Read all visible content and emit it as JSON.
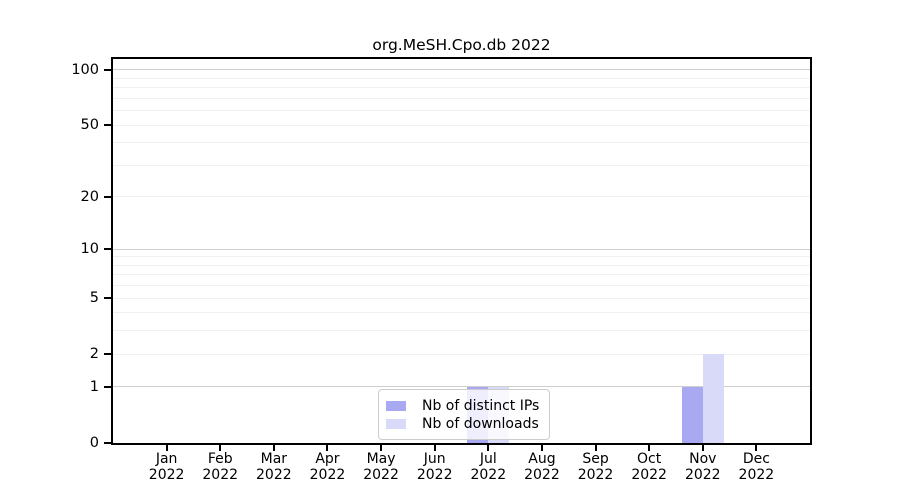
{
  "title": "org.MeSH.Cpo.db 2022",
  "chart_data": {
    "type": "bar",
    "title": "org.MeSH.Cpo.db 2022",
    "categories": [
      "Jan",
      "Feb",
      "Mar",
      "Apr",
      "May",
      "Jun",
      "Jul",
      "Aug",
      "Sep",
      "Oct",
      "Nov",
      "Dec"
    ],
    "year_label": "2022",
    "series": [
      {
        "name": "Nb of distinct IPs",
        "color": "#a9a9f1",
        "values": [
          0,
          0,
          0,
          0,
          0,
          0,
          1,
          0,
          0,
          0,
          1,
          0
        ]
      },
      {
        "name": "Nb of downloads",
        "color": "#d9d9f8",
        "values": [
          0,
          0,
          0,
          0,
          0,
          0,
          1,
          0,
          0,
          0,
          2,
          0
        ]
      }
    ],
    "yscale": "log1p",
    "ylabel": "",
    "xlabel": "",
    "ylim": [
      0,
      115
    ],
    "y_tick_values": [
      0,
      1,
      2,
      5,
      10,
      20,
      50,
      100
    ],
    "y_major_grid": [
      1,
      10,
      100
    ],
    "y_minor_grid": [
      2,
      3,
      4,
      5,
      6,
      7,
      8,
      9,
      20,
      30,
      40,
      50,
      60,
      70,
      80,
      90
    ],
    "grid": "horizontal",
    "legend_position": "inside-bottom-center"
  },
  "colors": {
    "background": "#ffffff",
    "frame": "#000000",
    "major_grid": "#cfcfcf",
    "minor_grid": "#f0f0f0",
    "legend_border": "#cccccc",
    "legend_background": "rgba(255,255,255,0.8)"
  }
}
